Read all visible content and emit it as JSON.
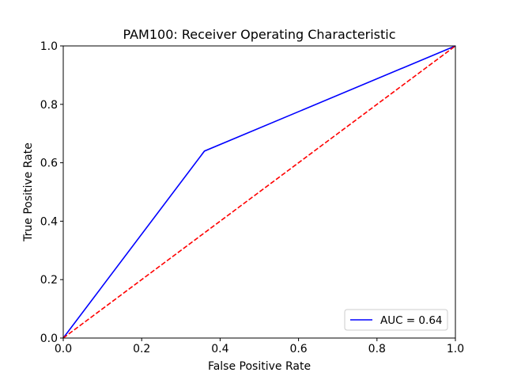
{
  "chart_data": {
    "type": "line",
    "title": "PAM100: Receiver Operating Characteristic",
    "xlabel": "False Positive Rate",
    "ylabel": "True Positive Rate",
    "xlim": [
      0,
      1
    ],
    "ylim": [
      0,
      1
    ],
    "xticks": [
      "0.0",
      "0.2",
      "0.4",
      "0.6",
      "0.8",
      "1.0"
    ],
    "yticks": [
      "0.0",
      "0.2",
      "0.4",
      "0.6",
      "0.8",
      "1.0"
    ],
    "grid": false,
    "legend_position": "lower-right",
    "series": [
      {
        "name": "AUC = 0.64",
        "color": "#0000ff",
        "style": "solid",
        "x": [
          0.0,
          0.36,
          1.0
        ],
        "y": [
          0.0,
          0.64,
          1.0
        ]
      },
      {
        "color": "#ff0000",
        "style": "dashed",
        "x": [
          0.0,
          1.0
        ],
        "y": [
          0.0,
          1.0
        ]
      }
    ]
  }
}
